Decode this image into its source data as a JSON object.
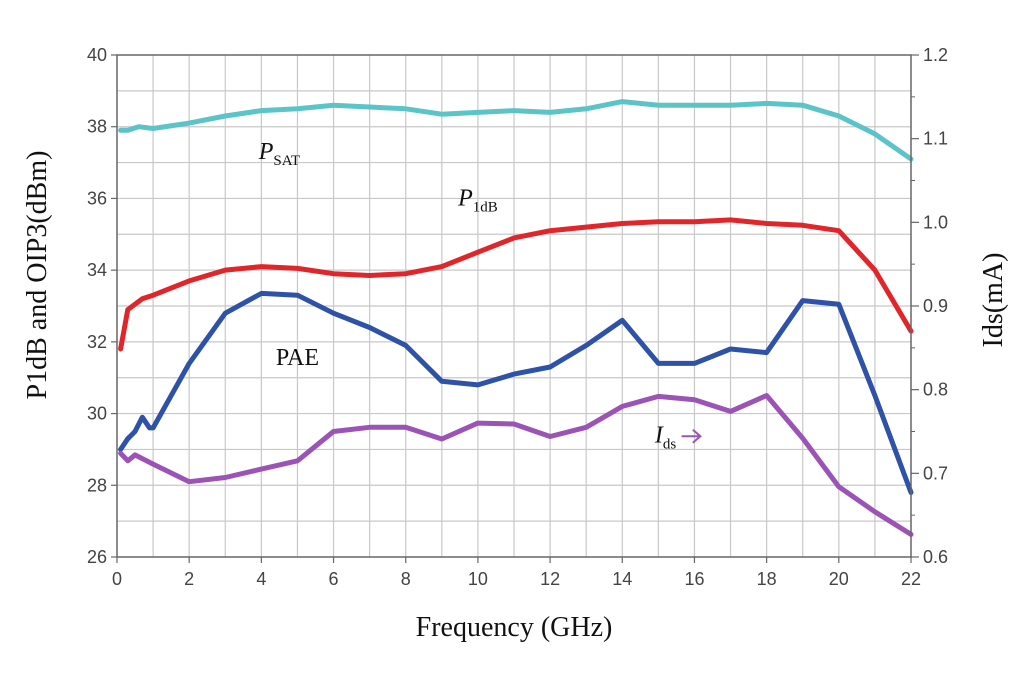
{
  "chart_data": {
    "type": "line",
    "xlabel": "Frequency (GHz)",
    "ylabel_left": "P1dB and OIP3(dBm)",
    "ylabel_right": "Ids(mA)",
    "xlim": [
      0,
      22
    ],
    "ylim_left": [
      26,
      40
    ],
    "ylim_right": [
      0.6,
      1.2
    ],
    "x_ticks": [
      "0",
      "2",
      "4",
      "6",
      "8",
      "10",
      "12",
      "14",
      "16",
      "18",
      "20",
      "22"
    ],
    "y_left_ticks": [
      "26",
      "28",
      "30",
      "32",
      "34",
      "36",
      "38",
      "40"
    ],
    "y_right_ticks": [
      "0.6",
      "0.7",
      "0.8",
      "0.9",
      "1.0",
      "1.1",
      "1.2"
    ],
    "grid": true,
    "series": [
      {
        "name": "PSAT",
        "axis": "left",
        "color": "#5bc4c8",
        "x": [
          0.1,
          0.3,
          0.6,
          1,
          2,
          3,
          4,
          5,
          6,
          7,
          8,
          9,
          10,
          11,
          12,
          13,
          14,
          15,
          16,
          17,
          18,
          19,
          20,
          21,
          22
        ],
        "y": [
          37.9,
          37.9,
          38.0,
          37.95,
          38.1,
          38.3,
          38.45,
          38.5,
          38.6,
          38.55,
          38.5,
          38.35,
          38.4,
          38.45,
          38.4,
          38.5,
          38.7,
          38.6,
          38.6,
          38.6,
          38.65,
          38.6,
          38.3,
          37.8,
          37.1
        ]
      },
      {
        "name": "P1dB",
        "axis": "left",
        "color": "#e0262b",
        "x": [
          0.1,
          0.3,
          0.7,
          1,
          2,
          3,
          4,
          5,
          6,
          7,
          8,
          9,
          10,
          11,
          12,
          13,
          14,
          15,
          16,
          17,
          18,
          19,
          20,
          21,
          22
        ],
        "y": [
          31.8,
          32.9,
          33.2,
          33.3,
          33.7,
          34.0,
          34.1,
          34.05,
          33.9,
          33.85,
          33.9,
          34.1,
          34.5,
          34.9,
          35.1,
          35.2,
          35.3,
          35.35,
          35.35,
          35.4,
          35.3,
          35.25,
          35.1,
          34.0,
          32.3
        ]
      },
      {
        "name": "PAE",
        "axis": "left",
        "color": "#2d52a8",
        "x": [
          0.1,
          0.3,
          0.5,
          0.7,
          0.9,
          1,
          2,
          3,
          4,
          5,
          6,
          7,
          8,
          9,
          10,
          11,
          12,
          13,
          14,
          15,
          16,
          17,
          18,
          19,
          20,
          21,
          22
        ],
        "y": [
          29.0,
          29.3,
          29.5,
          29.9,
          29.6,
          29.6,
          31.4,
          32.8,
          33.35,
          33.3,
          32.8,
          32.4,
          31.9,
          30.9,
          30.8,
          31.1,
          31.3,
          31.9,
          32.6,
          31.4,
          31.4,
          31.8,
          31.7,
          33.15,
          33.05,
          30.5,
          27.8
        ]
      },
      {
        "name": "Ids",
        "axis": "right",
        "color": "#9b54b6",
        "x": [
          0.1,
          0.3,
          0.5,
          1,
          2,
          3,
          4,
          5,
          6,
          7,
          8,
          9,
          10,
          11,
          12,
          13,
          14,
          15,
          16,
          17,
          18,
          19,
          20,
          21,
          22
        ],
        "y": [
          0.724,
          0.715,
          0.722,
          0.711,
          0.69,
          0.695,
          0.705,
          0.715,
          0.75,
          0.755,
          0.755,
          0.741,
          0.76,
          0.759,
          0.744,
          0.755,
          0.78,
          0.792,
          0.788,
          0.774,
          0.793,
          0.742,
          0.684,
          0.654,
          0.627
        ]
      }
    ],
    "annotations": [
      {
        "main": "P",
        "sub": "SAT",
        "italic": true,
        "x": 4.5,
        "y": 37.1
      },
      {
        "main": "P",
        "sub": "1dB",
        "italic": true,
        "x": 10.0,
        "y": 35.8
      },
      {
        "main": "PAE",
        "sub": "",
        "italic": false,
        "x": 5.0,
        "y": 31.35
      },
      {
        "main": "I",
        "sub": "ds",
        "italic": true,
        "x": 15.2,
        "y": 29.2,
        "arrow": true
      }
    ]
  }
}
